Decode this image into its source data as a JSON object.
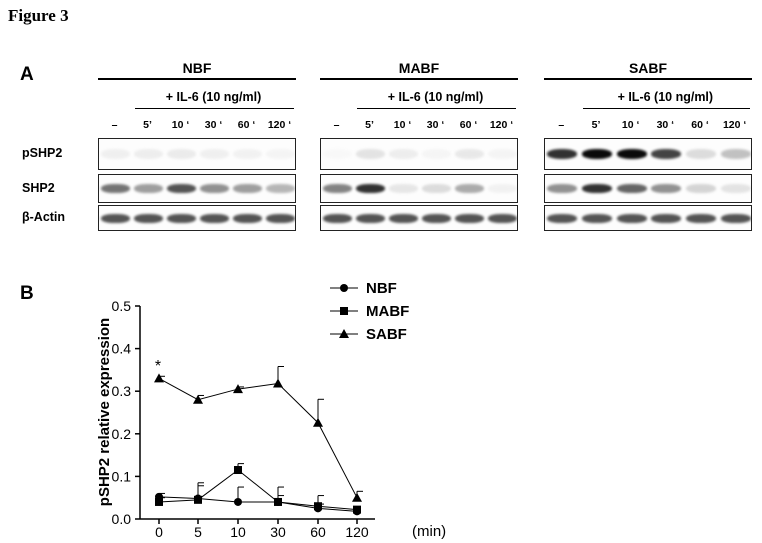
{
  "figure_title": "Figure 3",
  "panel_a": {
    "letter": "A",
    "treatment_label": "+ IL-6 (10 ng/ml)",
    "lanes": [
      "–",
      "5’",
      "10 ‘",
      "30 ‘",
      "60 ‘",
      "120 ‘"
    ],
    "row_labels": [
      "pSHP2",
      "SHP2",
      "β-Actin"
    ],
    "groups": [
      {
        "name": "NBF",
        "rows": [
          [
            0.1,
            0.12,
            0.14,
            0.1,
            0.08,
            0.05
          ],
          [
            0.7,
            0.55,
            0.8,
            0.6,
            0.55,
            0.45
          ],
          [
            0.8,
            0.8,
            0.8,
            0.8,
            0.8,
            0.8
          ]
        ]
      },
      {
        "name": "MABF",
        "rows": [
          [
            0.0,
            0.2,
            0.12,
            0.04,
            0.16,
            0.05
          ],
          [
            0.65,
            0.9,
            0.18,
            0.25,
            0.5,
            0.08
          ],
          [
            0.8,
            0.8,
            0.8,
            0.8,
            0.8,
            0.8
          ]
        ]
      },
      {
        "name": "SABF",
        "rows": [
          [
            0.9,
            1.0,
            1.0,
            0.85,
            0.25,
            0.4
          ],
          [
            0.6,
            0.9,
            0.75,
            0.6,
            0.3,
            0.2
          ],
          [
            0.8,
            0.8,
            0.8,
            0.8,
            0.8,
            0.8
          ]
        ]
      }
    ]
  },
  "panel_b": {
    "letter": "B",
    "significance_mark": "*"
  },
  "chart_data": {
    "type": "line",
    "title": "",
    "xlabel": "(min)",
    "ylabel": "pSHP2 relative expression",
    "categories": [
      "0",
      "5",
      "10",
      "30",
      "60",
      "120"
    ],
    "ylim": [
      0,
      0.5
    ],
    "yticks": [
      "0.0",
      "0.1",
      "0.2",
      "0.3",
      "0.4",
      "0.5"
    ],
    "legend_position": "top",
    "series": [
      {
        "name": "NBF",
        "marker": "circle",
        "values": [
          0.052,
          0.048,
          0.04,
          0.04,
          0.025,
          0.018
        ],
        "errors": [
          0.008,
          0.03,
          0.035,
          0.015,
          0.01,
          0.004
        ]
      },
      {
        "name": "MABF",
        "marker": "square",
        "values": [
          0.04,
          0.045,
          0.115,
          0.04,
          0.03,
          0.022
        ],
        "errors": [
          0.01,
          0.04,
          0.015,
          0.035,
          0.025,
          0.003
        ]
      },
      {
        "name": "SABF",
        "marker": "triangle",
        "values": [
          0.33,
          0.28,
          0.305,
          0.318,
          0.226,
          0.05
        ],
        "errors": [
          0.005,
          0.01,
          0.005,
          0.04,
          0.055,
          0.015
        ]
      }
    ]
  }
}
